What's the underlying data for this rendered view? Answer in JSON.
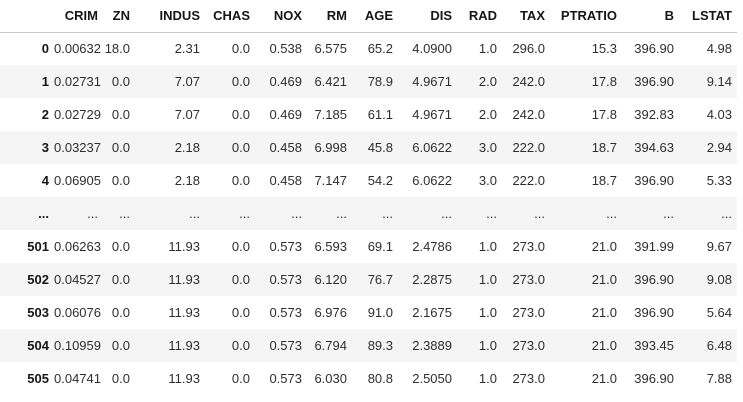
{
  "colors": {
    "background": "#ffffff",
    "stripe": "#f5f5f5",
    "header_rule": "#c9c9c9",
    "cell_text": "#2e2e2e",
    "header_text": "#161616"
  },
  "table": {
    "index_header": "",
    "columns": [
      "CRIM",
      "ZN",
      "INDUS",
      "CHAS",
      "NOX",
      "RM",
      "AGE",
      "DIS",
      "RAD",
      "TAX",
      "PTRATIO",
      "B",
      "LSTAT"
    ],
    "rows": [
      {
        "index": "0",
        "values": [
          "0.00632",
          "18.0",
          "2.31",
          "0.0",
          "0.538",
          "6.575",
          "65.2",
          "4.0900",
          "1.0",
          "296.0",
          "15.3",
          "396.90",
          "4.98"
        ]
      },
      {
        "index": "1",
        "values": [
          "0.02731",
          "0.0",
          "7.07",
          "0.0",
          "0.469",
          "6.421",
          "78.9",
          "4.9671",
          "2.0",
          "242.0",
          "17.8",
          "396.90",
          "9.14"
        ]
      },
      {
        "index": "2",
        "values": [
          "0.02729",
          "0.0",
          "7.07",
          "0.0",
          "0.469",
          "7.185",
          "61.1",
          "4.9671",
          "2.0",
          "242.0",
          "17.8",
          "392.83",
          "4.03"
        ]
      },
      {
        "index": "3",
        "values": [
          "0.03237",
          "0.0",
          "2.18",
          "0.0",
          "0.458",
          "6.998",
          "45.8",
          "6.0622",
          "3.0",
          "222.0",
          "18.7",
          "394.63",
          "2.94"
        ]
      },
      {
        "index": "4",
        "values": [
          "0.06905",
          "0.0",
          "2.18",
          "0.0",
          "0.458",
          "7.147",
          "54.2",
          "6.0622",
          "3.0",
          "222.0",
          "18.7",
          "396.90",
          "5.33"
        ]
      },
      {
        "index": "...",
        "values": [
          "...",
          "...",
          "...",
          "...",
          "...",
          "...",
          "...",
          "...",
          "...",
          "...",
          "...",
          "...",
          "..."
        ]
      },
      {
        "index": "501",
        "values": [
          "0.06263",
          "0.0",
          "11.93",
          "0.0",
          "0.573",
          "6.593",
          "69.1",
          "2.4786",
          "1.0",
          "273.0",
          "21.0",
          "391.99",
          "9.67"
        ]
      },
      {
        "index": "502",
        "values": [
          "0.04527",
          "0.0",
          "11.93",
          "0.0",
          "0.573",
          "6.120",
          "76.7",
          "2.2875",
          "1.0",
          "273.0",
          "21.0",
          "396.90",
          "9.08"
        ]
      },
      {
        "index": "503",
        "values": [
          "0.06076",
          "0.0",
          "11.93",
          "0.0",
          "0.573",
          "6.976",
          "91.0",
          "2.1675",
          "1.0",
          "273.0",
          "21.0",
          "396.90",
          "5.64"
        ]
      },
      {
        "index": "504",
        "values": [
          "0.10959",
          "0.0",
          "11.93",
          "0.0",
          "0.573",
          "6.794",
          "89.3",
          "2.3889",
          "1.0",
          "273.0",
          "21.0",
          "393.45",
          "6.48"
        ]
      },
      {
        "index": "505",
        "values": [
          "0.04741",
          "0.0",
          "11.93",
          "0.0",
          "0.573",
          "6.030",
          "80.8",
          "2.5050",
          "1.0",
          "273.0",
          "21.0",
          "396.90",
          "7.88"
        ]
      }
    ]
  }
}
